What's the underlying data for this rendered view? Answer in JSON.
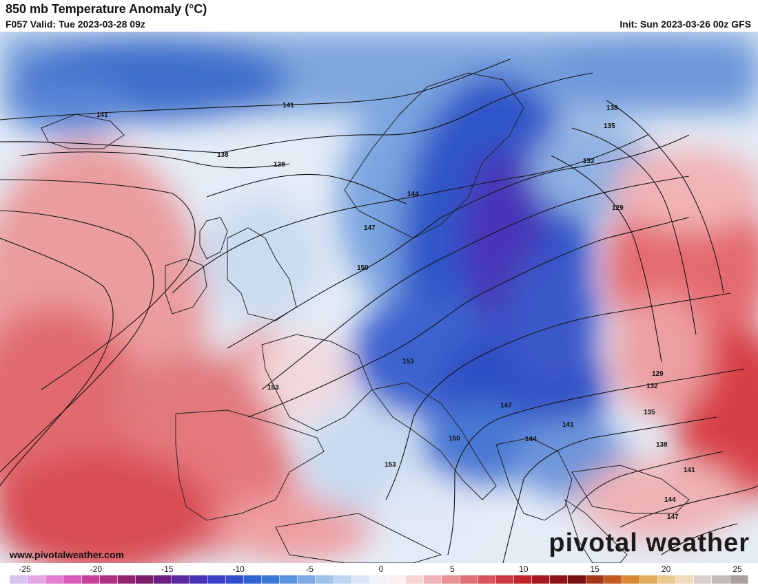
{
  "header": {
    "title": "850 mb Temperature Anomaly (°C)",
    "valid": "F057 Valid: Tue 2023-03-28 09z",
    "init": "Init: Sun 2023-03-26 00z GFS"
  },
  "footer": {
    "website": "www.pivotalweather.com",
    "logo": "pivotal weather"
  },
  "contour_labels": [
    "141",
    "141",
    "138",
    "138",
    "138",
    "135",
    "132",
    "129",
    "129",
    "132",
    "135",
    "138",
    "141",
    "144",
    "147",
    "144",
    "147",
    "150",
    "153",
    "153",
    "153",
    "150",
    "147",
    "144",
    "141",
    "144",
    "147"
  ],
  "colorbar": {
    "ticks": [
      "-25",
      "-20",
      "-15",
      "-10",
      "-5",
      "0",
      "5",
      "10",
      "15",
      "20",
      "25"
    ],
    "colors": [
      "#d8c2ee",
      "#e3a6e6",
      "#e47fd2",
      "#d95cb8",
      "#c8409d",
      "#b02f85",
      "#94236f",
      "#7d1d6a",
      "#6b1f83",
      "#5b2aa3",
      "#4a33b8",
      "#3c3fc8",
      "#2f4fcf",
      "#2f63d4",
      "#3b79d9",
      "#5b94df",
      "#7fabe5",
      "#a0c1ea",
      "#c0d6f0",
      "#dce8f6",
      "#f2f4fa",
      "#fbeff0",
      "#f6d3d5",
      "#efb2b5",
      "#e89196",
      "#e07077",
      "#d9545a",
      "#cf3b41",
      "#c1242b",
      "#a81a20",
      "#8e1418",
      "#7a1214",
      "#a4371a",
      "#c45a1e",
      "#d98a34",
      "#e4ac5a",
      "#ecc98e",
      "#efdcbc",
      "#d9d0cc",
      "#c4bcb8",
      "#a99f9c"
    ]
  }
}
